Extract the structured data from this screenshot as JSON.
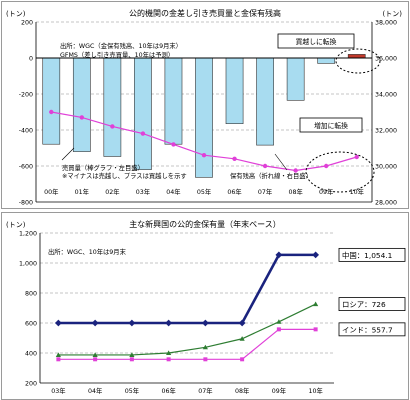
{
  "chart_data": [
    {
      "type": "bar",
      "title": "公的機関の金差し引き売買量と金保有残高",
      "left_unit": "(トン)",
      "right_unit": "(トン)",
      "source_note": [
        "出所：WGC（金保有残高、10年は9月末）",
        "GFMS（差し引き売買量、10年は予測）"
      ],
      "categories": [
        "00年",
        "01年",
        "02年",
        "03年",
        "04年",
        "05年",
        "06年",
        "07年",
        "08年",
        "09年",
        "10年"
      ],
      "ylim_left": [
        -800,
        200
      ],
      "yticks_left": [
        200,
        0,
        -200,
        -400,
        -600,
        -800
      ],
      "ylim_right": [
        28000,
        38000
      ],
      "yticks_right": [
        "38,000",
        "36,000",
        "34,000",
        "32,000",
        "30,000",
        "28,000"
      ],
      "series": [
        {
          "name": "売買量（棒グラフ・左目盛）",
          "axis": "left",
          "kind": "bar",
          "values": [
            -479,
            -520,
            -547,
            -620,
            -479,
            -663,
            -365,
            -484,
            -235,
            -30,
            20
          ]
        },
        {
          "name": "保有残高（折れ線・右目盛）",
          "axis": "right",
          "kind": "line",
          "color": "#e040d8",
          "values": [
            33000,
            32700,
            32200,
            31800,
            31200,
            30600,
            30400,
            30000,
            29750,
            30000,
            30500
          ]
        }
      ],
      "bar_colors": {
        "positive": "#c0392b",
        "negative": "#a8dcf0"
      },
      "legend": {
        "bars": "売買量（棒グラフ・左目盛）",
        "note": "※マイナスは売越し、プラスは買越しを示す",
        "line": "保有残高（折れ線・右目盛）"
      },
      "annotations": {
        "buy": "買越しに転換",
        "increase": "増加に転換"
      }
    },
    {
      "type": "line",
      "title": "主な新興国の公的金保有量（年末ベース）",
      "unit": "(トン)",
      "source_note": "出所：WGC、10年は9月末",
      "categories": [
        "03年",
        "04年",
        "05年",
        "06年",
        "07年",
        "08年",
        "09年",
        "10年"
      ],
      "ylim": [
        200,
        1200
      ],
      "yticks": [
        "1,200",
        "1,000",
        "800",
        "600",
        "400",
        "200"
      ],
      "series": [
        {
          "name": "中国",
          "color": "#1a237e",
          "values": [
            600,
            600,
            600,
            600,
            600,
            600,
            1054.1,
            1054.1
          ]
        },
        {
          "name": "ロシア",
          "color": "#2e7d32",
          "values": [
            387,
            387,
            387,
            400,
            438,
            495,
            608,
            726
          ]
        },
        {
          "name": "インド",
          "color": "#e040d8",
          "values": [
            358,
            358,
            358,
            358,
            358,
            358,
            557.7,
            557.7
          ]
        }
      ],
      "end_labels": [
        "中国：1,054.1",
        "ロシア：726",
        "インド：557.7"
      ]
    }
  ]
}
